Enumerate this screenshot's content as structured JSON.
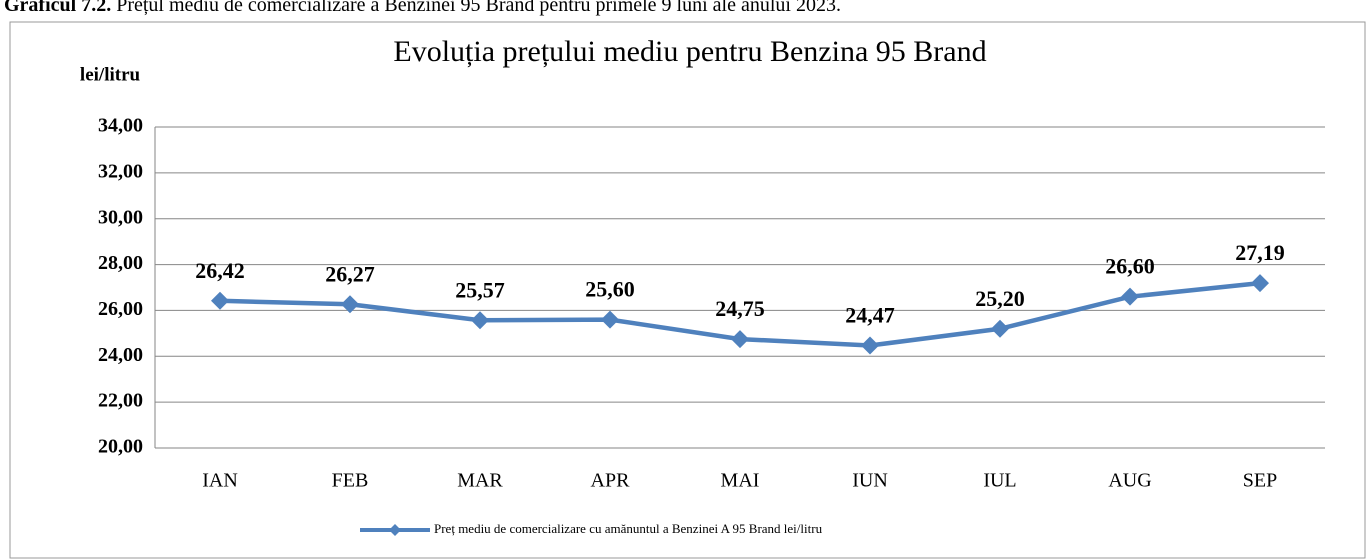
{
  "caption": {
    "label": "Graficul 7.2.",
    "text": "Prețul mediu de comercializare a Benzinei 95 Brand pentru primele 9 luni ale anului 2023."
  },
  "chart_data": {
    "type": "line",
    "title": "Evoluția prețului mediu pentru Benzina 95 Brand",
    "y_label": "lei/litru",
    "categories": [
      "IAN",
      "FEB",
      "MAR",
      "APR",
      "MAI",
      "IUN",
      "IUL",
      "AUG",
      "SEP"
    ],
    "series": [
      {
        "name": "Preț mediu de comercializare cu amănuntul a Benzinei A 95 Brand lei/litru",
        "color": "#4f81bd",
        "values": [
          26.42,
          26.27,
          25.57,
          25.6,
          24.75,
          24.47,
          25.2,
          26.6,
          27.19
        ],
        "value_labels": [
          "26,42",
          "26,27",
          "25,57",
          "25,60",
          "24,75",
          "24,47",
          "25,20",
          "26,60",
          "27,19"
        ]
      }
    ],
    "ylim": [
      20,
      34
    ],
    "yticks": [
      {
        "value": 20,
        "label": "20,00"
      },
      {
        "value": 22,
        "label": "22,00"
      },
      {
        "value": 24,
        "label": "24,00"
      },
      {
        "value": 26,
        "label": "26,00"
      },
      {
        "value": 28,
        "label": "28,00"
      },
      {
        "value": 30,
        "label": "30,00"
      },
      {
        "value": 32,
        "label": "32,00"
      },
      {
        "value": 34,
        "label": "34,00"
      }
    ],
    "grid": true,
    "legend": "bottom"
  }
}
